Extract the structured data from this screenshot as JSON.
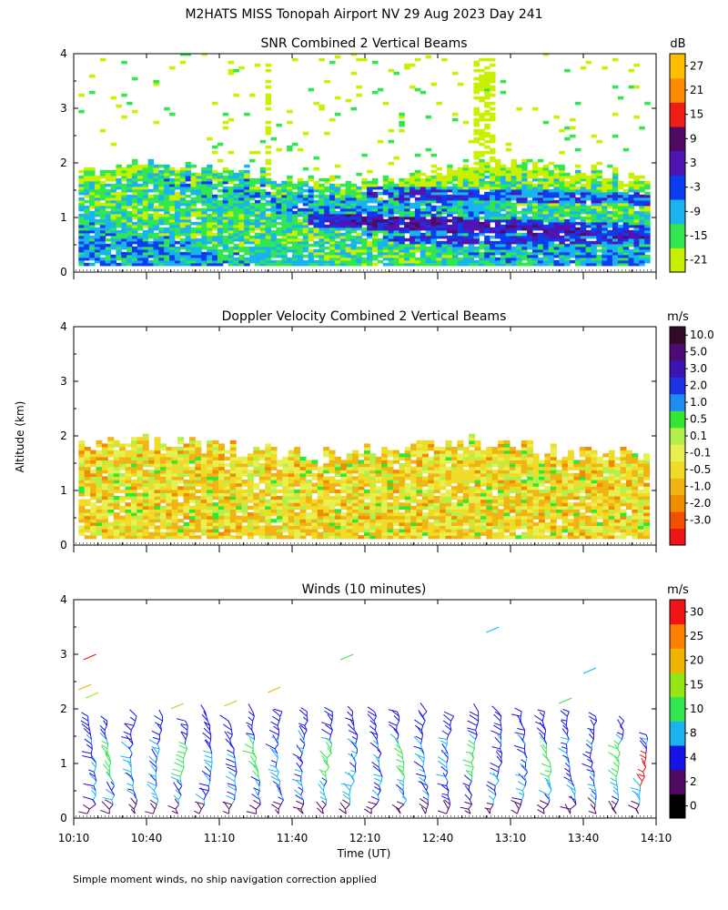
{
  "title": "M2HATS MISS Tonopah Airport NV  29 Aug 2023 Day 241",
  "ylabel": "Altitude (km)",
  "xlabel": "Time (UT)",
  "footnote": "Simple moment winds, no ship navigation correction applied",
  "chart_data": [
    {
      "type": "heatmap",
      "title": "SNR Combined 2 Vertical Beams",
      "colorbar_unit": "dB",
      "colorbar_ticks": [
        "27",
        "21",
        "15",
        "9",
        "3",
        "-3",
        "-9",
        "-15",
        "-21"
      ],
      "colors": [
        "#c8f000",
        "#32e650",
        "#19b4f0",
        "#0a3cf0",
        "#5014b4",
        "#500a64",
        "#f01e14",
        "#ff8c00",
        "#ffbe00"
      ],
      "yticks": [
        "0",
        "1",
        "2",
        "3",
        "4"
      ],
      "ylim": [
        0,
        4
      ],
      "xlim_minutes": [
        0,
        240
      ]
    },
    {
      "type": "heatmap",
      "title": "Doppler Velocity Combined 2 Vertical Beams",
      "colorbar_unit": "m/s",
      "colorbar_ticks": [
        "10.0",
        "5.0",
        "3.0",
        "2.0",
        "1.0",
        "0.5",
        "0.1",
        "-0.1",
        "-0.5",
        "-1.0",
        "-2.0",
        "-3.0"
      ],
      "colors": [
        "#f01414",
        "#f05000",
        "#f08c00",
        "#f0b414",
        "#f0dc28",
        "#e6f050",
        "#b4f04b",
        "#32e632",
        "#1e8cf0",
        "#1e32e6",
        "#3c14b4",
        "#500a78",
        "#320a28"
      ],
      "yticks": [
        "0",
        "1",
        "2",
        "3",
        "4"
      ],
      "ylim": [
        0,
        4
      ],
      "xlim_minutes": [
        0,
        240
      ]
    },
    {
      "type": "scatter",
      "title": "Winds (10 minutes)",
      "colorbar_unit": "m/s",
      "colorbar_ticks": [
        "30",
        "25",
        "20",
        "15",
        "10",
        "8",
        "4",
        "2",
        "0"
      ],
      "colors": [
        "#000000",
        "#500a64",
        "#1414e6",
        "#19b4f0",
        "#32e650",
        "#96e614",
        "#f0b400",
        "#ff8000",
        "#f01414"
      ],
      "yticks": [
        "0",
        "1",
        "2",
        "3",
        "4"
      ],
      "ylim": [
        0,
        4
      ],
      "xticks": [
        "10:10",
        "10:40",
        "11:10",
        "11:40",
        "12:10",
        "12:40",
        "13:10",
        "13:40",
        "14:10"
      ],
      "xlim_minutes": [
        0,
        240
      ],
      "profile_times_minutes": [
        7.5,
        15,
        25,
        35,
        45,
        55,
        65,
        75,
        85,
        95,
        105,
        115,
        125,
        135,
        145,
        155,
        165,
        175,
        185,
        195,
        205,
        215,
        225,
        235
      ],
      "profile_top_km": [
        1.9,
        1.85,
        1.9,
        1.9,
        1.85,
        2.0,
        1.85,
        2.0,
        2.0,
        2.0,
        2.0,
        2.0,
        2.0,
        2.0,
        2.0,
        1.9,
        2.0,
        2.0,
        2.0,
        2.0,
        2.0,
        1.9,
        1.85,
        1.6
      ]
    }
  ]
}
